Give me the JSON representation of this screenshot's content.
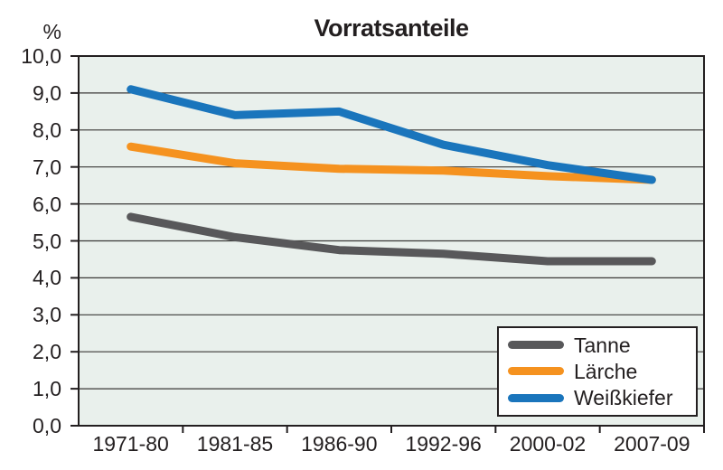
{
  "chart_data": {
    "type": "line",
    "title": "Vorratsanteile",
    "y_axis_unit_label": "%",
    "categories": [
      "1971-80",
      "1981-85",
      "1986-90",
      "1992-96",
      "2000-02",
      "2007-09"
    ],
    "series": [
      {
        "name": "Tanne",
        "color": "#58585a",
        "values": [
          5.65,
          5.1,
          4.75,
          4.65,
          4.45,
          4.45
        ]
      },
      {
        "name": "Lärche",
        "color": "#f5921f",
        "values": [
          7.55,
          7.1,
          6.95,
          6.9,
          6.75,
          6.65
        ]
      },
      {
        "name": "Weißkiefer",
        "color": "#1a75bc",
        "values": [
          9.1,
          8.4,
          8.5,
          7.6,
          7.05,
          6.65
        ]
      }
    ],
    "ylim": [
      0,
      10
    ],
    "y_tick_step": 1,
    "y_tick_labels": [
      "0,0",
      "1,0",
      "2,0",
      "3,0",
      "4,0",
      "5,0",
      "6,0",
      "7,0",
      "8,0",
      "9,0",
      "10,0"
    ],
    "grid": true,
    "legend_position": "bottom-right",
    "colors": {
      "plot_background": "#e9f0ec",
      "grid_color": "#3a3937",
      "axis_color": "#231f20",
      "text_color": "#231f20",
      "page_background": "#ffffff"
    }
  }
}
